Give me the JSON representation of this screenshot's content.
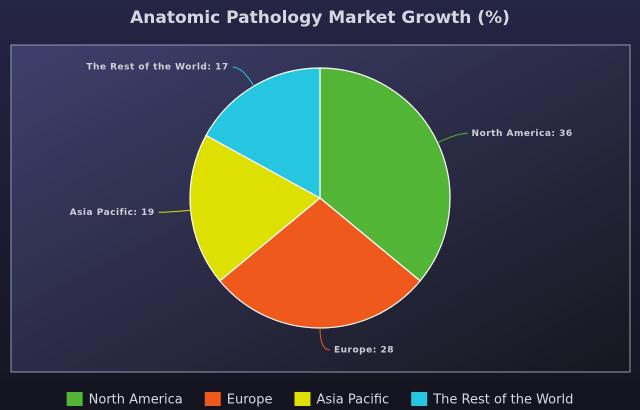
{
  "chart_data": {
    "type": "pie",
    "title": "Anatomic Pathology Market Growth (%)",
    "categories": [
      "North America",
      "Europe",
      "Asia Pacific",
      "The Rest of the World"
    ],
    "values": [
      36,
      28,
      19,
      17
    ],
    "value_labels": [
      "North America: 36",
      "Europe: 28",
      "Asia Pacific: 19",
      "The Rest of the World: 17"
    ],
    "colors": [
      "#52b535",
      "#ef5a1c",
      "#dde000",
      "#26c6e0"
    ],
    "legend": "bottom"
  }
}
